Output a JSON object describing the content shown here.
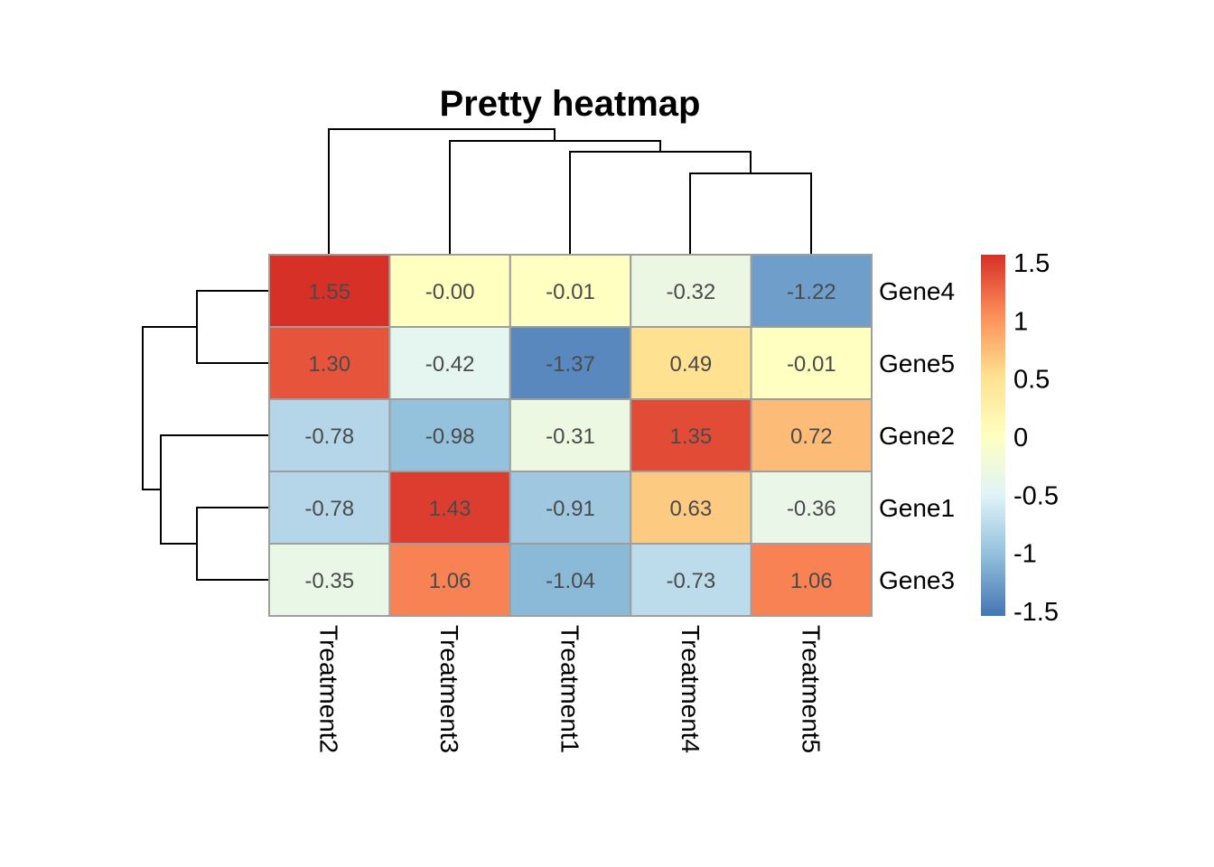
{
  "chart_data": {
    "type": "heatmap",
    "title": "Pretty heatmap",
    "columns": [
      "Treatment2",
      "Treatment3",
      "Treatment1",
      "Treatment4",
      "Treatment5"
    ],
    "rows": [
      "Gene4",
      "Gene5",
      "Gene2",
      "Gene1",
      "Gene3"
    ],
    "values": [
      [
        1.55,
        -0.0,
        -0.01,
        -0.32,
        -1.22
      ],
      [
        1.3,
        -0.42,
        -1.37,
        0.49,
        -0.01
      ],
      [
        -0.78,
        -0.98,
        -0.31,
        1.35,
        0.72
      ],
      [
        -0.78,
        1.43,
        -0.91,
        0.63,
        -0.36
      ],
      [
        -0.35,
        1.06,
        -1.04,
        -0.73,
        1.06
      ]
    ],
    "cell_labels": [
      [
        "1.55",
        "-0.00",
        "-0.01",
        "-0.32",
        "-1.22"
      ],
      [
        "1.30",
        "-0.42",
        "-1.37",
        "0.49",
        "-0.01"
      ],
      [
        "-0.78",
        "-0.98",
        "-0.31",
        "1.35",
        "0.72"
      ],
      [
        "-0.78",
        "1.43",
        "-0.91",
        "0.63",
        "-0.36"
      ],
      [
        "-0.35",
        "1.06",
        "-1.04",
        "-0.73",
        "1.06"
      ]
    ],
    "color_scale": {
      "min": -1.5,
      "max": 1.5,
      "colors": [
        "#4575B4",
        "#91BFDB",
        "#E0F3F8",
        "#FFFFBF",
        "#FEE090",
        "#FC8D59",
        "#D73027"
      ]
    },
    "legend": {
      "position": "right",
      "ticks": [
        1.5,
        1,
        0.5,
        0,
        -0.5,
        -1,
        -1.5
      ],
      "tick_labels": [
        "1.5",
        "1",
        "0.5",
        "0",
        "-0.5",
        "-1",
        "-1.5"
      ]
    },
    "column_dendrogram": "((Treatment2),((Treatment3),((Treatment1),(Treatment4,Treatment5))))",
    "row_dendrogram": "((Gene4,Gene5),(Gene2,(Gene1,Gene3)))"
  }
}
